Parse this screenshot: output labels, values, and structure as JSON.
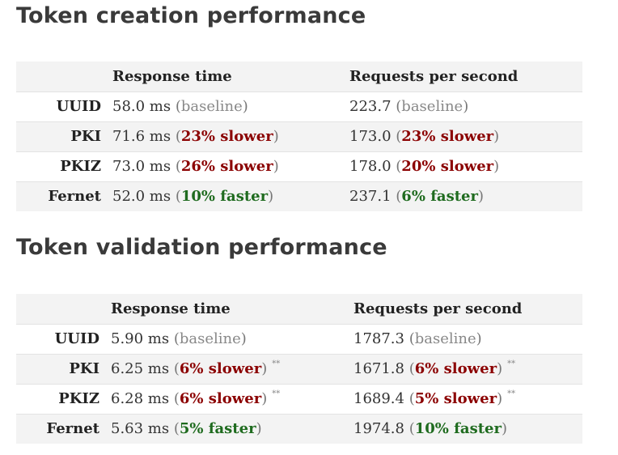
{
  "creation": {
    "title": "Token creation performance",
    "headers": {
      "response": "Response time",
      "requests": "Requests per second"
    },
    "rows": [
      {
        "name": "UUID",
        "rt": "58.0 ms",
        "rt_note": "baseline",
        "rt_kind": "base",
        "rps": "223.7",
        "rps_note": "baseline",
        "rps_kind": "base",
        "rt_mark": "",
        "rps_mark": ""
      },
      {
        "name": "PKI",
        "rt": "71.6 ms",
        "rt_note": "23% slower",
        "rt_kind": "slower",
        "rps": "173.0",
        "rps_note": "23% slower",
        "rps_kind": "slower",
        "rt_mark": "",
        "rps_mark": ""
      },
      {
        "name": "PKIZ",
        "rt": "73.0 ms",
        "rt_note": "26% slower",
        "rt_kind": "slower",
        "rps": "178.0",
        "rps_note": "20% slower",
        "rps_kind": "slower",
        "rt_mark": "",
        "rps_mark": ""
      },
      {
        "name": "Fernet",
        "rt": "52.0 ms",
        "rt_note": "10% faster",
        "rt_kind": "faster",
        "rps": "237.1",
        "rps_note": "6% faster",
        "rps_kind": "faster",
        "rt_mark": "",
        "rps_mark": ""
      }
    ]
  },
  "validation": {
    "title": "Token validation performance",
    "headers": {
      "response": "Response time",
      "requests": "Requests per second"
    },
    "rows": [
      {
        "name": "UUID",
        "rt": "5.90 ms",
        "rt_note": "baseline",
        "rt_kind": "base",
        "rps": "1787.3",
        "rps_note": "baseline",
        "rps_kind": "base",
        "rt_mark": "",
        "rps_mark": ""
      },
      {
        "name": "PKI",
        "rt": "6.25 ms",
        "rt_note": "6% slower",
        "rt_kind": "slower",
        "rps": "1671.8",
        "rps_note": "6% slower",
        "rps_kind": "slower",
        "rt_mark": "**",
        "rps_mark": "**"
      },
      {
        "name": "PKIZ",
        "rt": "6.28 ms",
        "rt_note": "6% slower",
        "rt_kind": "slower",
        "rps": "1689.4",
        "rps_note": "5% slower",
        "rps_kind": "slower",
        "rt_mark": "**",
        "rps_mark": "**"
      },
      {
        "name": "Fernet",
        "rt": "5.63 ms",
        "rt_note": "5% faster",
        "rt_kind": "faster",
        "rps": "1974.8",
        "rps_note": "10% faster",
        "rps_kind": "faster",
        "rt_mark": "",
        "rps_mark": ""
      }
    ]
  }
}
